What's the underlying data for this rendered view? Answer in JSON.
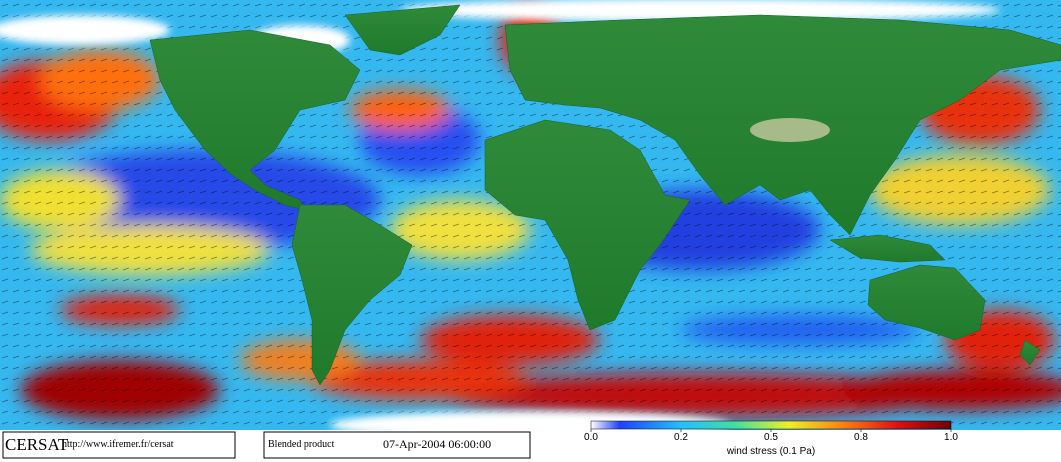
{
  "branding": {
    "logo": "CERSAT",
    "url": "http://www.ifremer.fr/cersat"
  },
  "product": {
    "name": "Blended product",
    "timestamp": "07-Apr-2004 06:00:00"
  },
  "colorbar": {
    "title": "wind stress (0.1 Pa)",
    "ticks": [
      {
        "value": 0,
        "label": "0.0"
      },
      {
        "value": 0.2,
        "label": "0.2"
      },
      {
        "value": 0.5,
        "label": "0.5"
      },
      {
        "value": 0.8,
        "label": "0.8"
      },
      {
        "value": 1,
        "label": "1.0"
      }
    ]
  }
}
